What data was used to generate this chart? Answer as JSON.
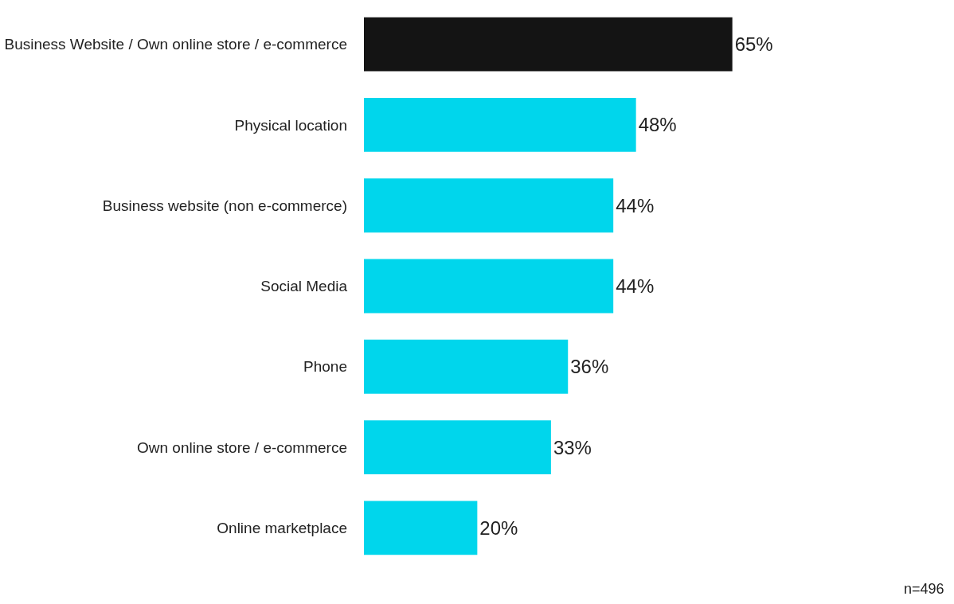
{
  "chart_data": {
    "type": "bar",
    "orientation": "horizontal",
    "categories": [
      "Business Website / Own online store / e-commerce",
      "Physical location",
      "Business website (non e-commerce)",
      "Social Media",
      "Phone",
      "Own online store / e-commerce",
      "Online marketplace"
    ],
    "values": [
      65,
      48,
      44,
      44,
      36,
      33,
      20
    ],
    "value_labels": [
      "65%",
      "48%",
      "44%",
      "44%",
      "36%",
      "33%",
      "20%"
    ],
    "colors": [
      "#141414",
      "#00d6ec",
      "#00d6ec",
      "#00d6ec",
      "#00d6ec",
      "#00d6ec",
      "#00d6ec"
    ],
    "annotations": [
      "n=496"
    ]
  }
}
